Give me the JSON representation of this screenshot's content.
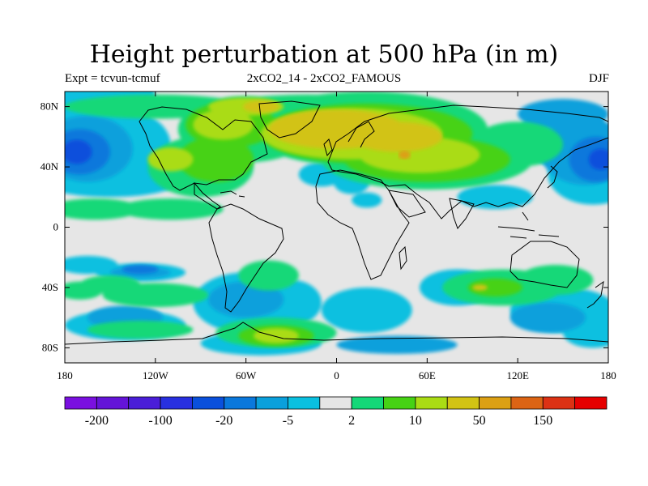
{
  "title": "Height perturbation at 500 hPa (in m)",
  "left_subtitle": "Expt = tcvun-tcmuf",
  "center_subtitle": "2xCO2_14 - 2xCO2_FAMOUS",
  "right_subtitle": "DJF",
  "lat_ticks": [
    {
      "lat": 80,
      "label": "80N"
    },
    {
      "lat": 40,
      "label": "40N"
    },
    {
      "lat": 0,
      "label": "0"
    },
    {
      "lat": -40,
      "label": "40S"
    },
    {
      "lat": -80,
      "label": "80S"
    }
  ],
  "lon_ticks": [
    {
      "lon": -180,
      "label": "180"
    },
    {
      "lon": -120,
      "label": "120W"
    },
    {
      "lon": -60,
      "label": "60W"
    },
    {
      "lon": 0,
      "label": "0"
    },
    {
      "lon": 60,
      "label": "60E"
    },
    {
      "lon": 120,
      "label": "120E"
    },
    {
      "lon": 180,
      "label": "180"
    }
  ],
  "colorbar": {
    "colors": [
      "#7a10e0",
      "#6414d8",
      "#4a1ed8",
      "#2830e0",
      "#0a50dc",
      "#0a78dc",
      "#0aa0dc",
      "#0ac0e0",
      "#e6e6e6",
      "#14d878",
      "#46d214",
      "#aadc14",
      "#d2c314",
      "#dca014",
      "#dc6414",
      "#dc3214",
      "#e60000"
    ],
    "labels": [
      {
        "boundary": 1,
        "text": "-200"
      },
      {
        "boundary": 3,
        "text": "-100"
      },
      {
        "boundary": 5,
        "text": "-20"
      },
      {
        "boundary": 7,
        "text": "-5"
      },
      {
        "boundary": 9,
        "text": "2"
      },
      {
        "boundary": 11,
        "text": "10"
      },
      {
        "boundary": 13,
        "text": "50"
      },
      {
        "boundary": 15,
        "text": "150"
      }
    ]
  },
  "fields": {
    "background": "#e6e6e6",
    "levels": [
      {
        "color": "#0ac0e0",
        "regions": [
          {
            "lon": -180,
            "lat": 85,
            "rx": 60,
            "ry": 30
          },
          {
            "lon": -150,
            "lat": 55,
            "rx": 40,
            "ry": 25
          },
          {
            "lon": -150,
            "lat": 30,
            "rx": 45,
            "ry": 10
          },
          {
            "lon": -10,
            "lat": 35,
            "rx": 15,
            "ry": 8
          },
          {
            "lon": 10,
            "lat": 30,
            "rx": 12,
            "ry": 8
          },
          {
            "lon": 20,
            "lat": 18,
            "rx": 10,
            "ry": 5
          },
          {
            "lon": -165,
            "lat": -25,
            "rx": 20,
            "ry": 6
          },
          {
            "lon": -130,
            "lat": -30,
            "rx": 30,
            "ry": 6
          },
          {
            "lon": -60,
            "lat": -50,
            "rx": 35,
            "ry": 20
          },
          {
            "lon": -30,
            "lat": -50,
            "rx": 20,
            "ry": 15
          },
          {
            "lon": 20,
            "lat": -55,
            "rx": 30,
            "ry": 15
          },
          {
            "lon": 80,
            "lat": -40,
            "rx": 25,
            "ry": 12
          },
          {
            "lon": 150,
            "lat": -55,
            "rx": 35,
            "ry": 15
          },
          {
            "lon": -140,
            "lat": -65,
            "rx": 40,
            "ry": 10
          },
          {
            "lon": -50,
            "lat": -77,
            "rx": 40,
            "ry": 8
          },
          {
            "lon": 170,
            "lat": -70,
            "rx": 20,
            "ry": 10
          },
          {
            "lon": 170,
            "lat": 35,
            "rx": 30,
            "ry": 20
          },
          {
            "lon": 150,
            "lat": 60,
            "rx": 30,
            "ry": 20
          },
          {
            "lon": 105,
            "lat": 20,
            "rx": 25,
            "ry": 8
          }
        ]
      },
      {
        "color": "#0aa0dc",
        "regions": [
          {
            "lon": -165,
            "lat": 52,
            "rx": 30,
            "ry": 22
          },
          {
            "lon": 165,
            "lat": 50,
            "rx": 30,
            "ry": 22
          },
          {
            "lon": 150,
            "lat": 75,
            "rx": 30,
            "ry": 10
          },
          {
            "lon": -60,
            "lat": -48,
            "rx": 25,
            "ry": 12
          },
          {
            "lon": 140,
            "lat": -60,
            "rx": 25,
            "ry": 10
          },
          {
            "lon": -140,
            "lat": -60,
            "rx": 25,
            "ry": 8
          },
          {
            "lon": -130,
            "lat": -30,
            "rx": 20,
            "ry": 4
          },
          {
            "lon": 40,
            "lat": -78,
            "rx": 40,
            "ry": 6
          }
        ]
      },
      {
        "color": "#0a78dc",
        "regions": [
          {
            "lon": -170,
            "lat": 50,
            "rx": 20,
            "ry": 15
          },
          {
            "lon": 172,
            "lat": 45,
            "rx": 18,
            "ry": 15
          },
          {
            "lon": -130,
            "lat": -28,
            "rx": 12,
            "ry": 3
          }
        ]
      },
      {
        "color": "#0a50dc",
        "regions": [
          {
            "lon": -172,
            "lat": 50,
            "rx": 10,
            "ry": 8
          },
          {
            "lon": 175,
            "lat": 45,
            "rx": 8,
            "ry": 7
          }
        ]
      },
      {
        "color": "#14d878",
        "regions": [
          {
            "lon": -60,
            "lat": 65,
            "rx": 45,
            "ry": 22
          },
          {
            "lon": -90,
            "lat": 40,
            "rx": 35,
            "ry": 20
          },
          {
            "lon": -160,
            "lat": 12,
            "rx": 30,
            "ry": 7
          },
          {
            "lon": -110,
            "lat": 12,
            "rx": 35,
            "ry": 7
          },
          {
            "lon": 20,
            "lat": 65,
            "rx": 80,
            "ry": 25
          },
          {
            "lon": 60,
            "lat": 45,
            "rx": 70,
            "ry": 20
          },
          {
            "lon": 120,
            "lat": 55,
            "rx": 30,
            "ry": 15
          },
          {
            "lon": -45,
            "lat": -32,
            "rx": 20,
            "ry": 10
          },
          {
            "lon": -120,
            "lat": -45,
            "rx": 35,
            "ry": 8
          },
          {
            "lon": 110,
            "lat": -40,
            "rx": 40,
            "ry": 12
          },
          {
            "lon": 145,
            "lat": -35,
            "rx": 25,
            "ry": 10
          },
          {
            "lon": -40,
            "lat": -70,
            "rx": 40,
            "ry": 10
          },
          {
            "lon": -130,
            "lat": -68,
            "rx": 35,
            "ry": 6
          },
          {
            "lon": -150,
            "lat": -38,
            "rx": 20,
            "ry": 6
          },
          {
            "lon": -170,
            "lat": -42,
            "rx": 15,
            "ry": 6
          },
          {
            "lon": -20,
            "lat": 78,
            "rx": 60,
            "ry": 10
          },
          {
            "lon": -120,
            "lat": 80,
            "rx": 60,
            "ry": 8
          }
        ]
      },
      {
        "color": "#46d214",
        "regions": [
          {
            "lon": -70,
            "lat": 68,
            "rx": 30,
            "ry": 15
          },
          {
            "lon": -80,
            "lat": 45,
            "rx": 25,
            "ry": 15
          },
          {
            "lon": 20,
            "lat": 62,
            "rx": 70,
            "ry": 20
          },
          {
            "lon": 60,
            "lat": 45,
            "rx": 55,
            "ry": 15
          },
          {
            "lon": 105,
            "lat": -40,
            "rx": 18,
            "ry": 6
          },
          {
            "lon": -40,
            "lat": -72,
            "rx": 25,
            "ry": 7
          }
        ]
      },
      {
        "color": "#aadc14",
        "regions": [
          {
            "lon": -75,
            "lat": 68,
            "rx": 20,
            "ry": 10
          },
          {
            "lon": -110,
            "lat": 45,
            "rx": 15,
            "ry": 8
          },
          {
            "lon": 10,
            "lat": 62,
            "rx": 60,
            "ry": 17
          },
          {
            "lon": 55,
            "lat": 48,
            "rx": 40,
            "ry": 12
          },
          {
            "lon": -40,
            "lat": -72,
            "rx": 15,
            "ry": 5
          },
          {
            "lon": -60,
            "lat": 80,
            "rx": 25,
            "ry": 6
          }
        ]
      },
      {
        "color": "#d2c314",
        "regions": [
          {
            "lon": 0,
            "lat": 65,
            "rx": 45,
            "ry": 13
          },
          {
            "lon": 40,
            "lat": 60,
            "rx": 30,
            "ry": 10
          },
          {
            "lon": -50,
            "lat": 80,
            "rx": 12,
            "ry": 4
          },
          {
            "lon": 95,
            "lat": -40,
            "rx": 5,
            "ry": 2
          }
        ]
      },
      {
        "color": "#dca014",
        "regions": [
          {
            "lon": 45,
            "lat": 48,
            "rx": 4,
            "ry": 3
          }
        ]
      }
    ]
  }
}
